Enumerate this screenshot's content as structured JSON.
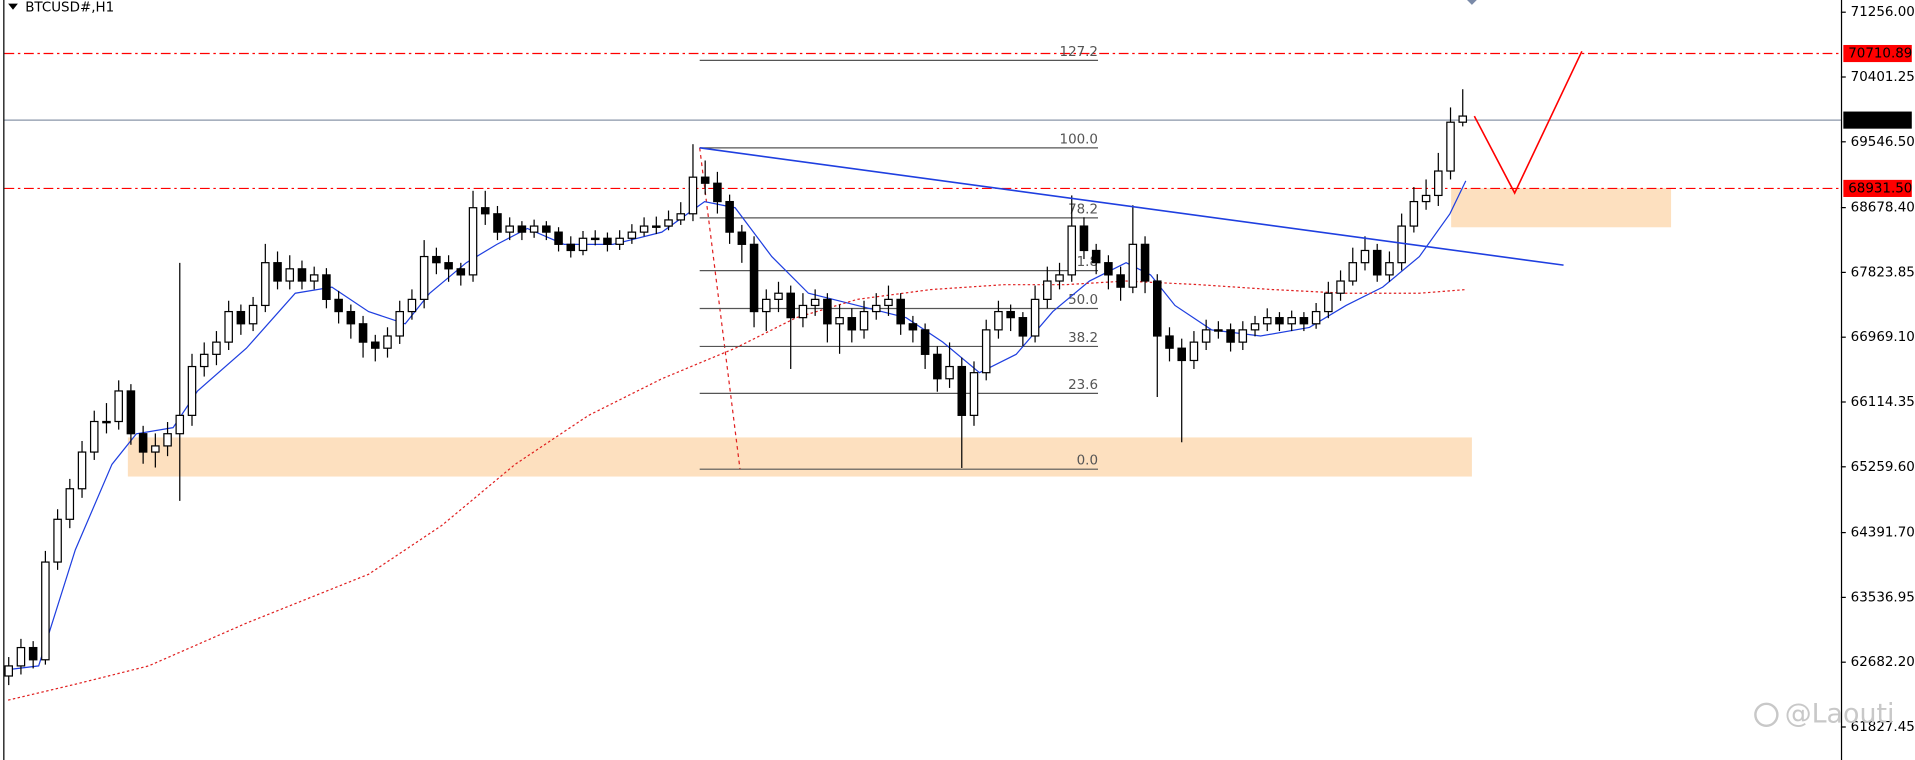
{
  "chart_data": {
    "type": "candlestick",
    "title": "BTCUSD#,H1",
    "watermark": "@Laouti",
    "ylim": [
      61392,
      71417
    ],
    "yticks": [
      {
        "value": 71256,
        "label": "71256.00"
      },
      {
        "value": 70401.25,
        "label": "70401.25"
      },
      {
        "value": 69546.5,
        "label": "69546.50"
      },
      {
        "value": 68678.4,
        "label": "68678.40"
      },
      {
        "value": 67823.85,
        "label": "67823.85"
      },
      {
        "value": 66969.1,
        "label": "66969.10"
      },
      {
        "value": 66114.35,
        "label": "66114.35"
      },
      {
        "value": 65259.6,
        "label": "65259.60"
      },
      {
        "value": 64391.7,
        "label": "64391.70"
      },
      {
        "value": 63536.95,
        "label": "63536.95"
      },
      {
        "value": 62682.2,
        "label": "62682.20"
      },
      {
        "value": 61827.45,
        "label": "61827.45"
      }
    ],
    "bull_color": "#ffffff",
    "bear_color": "#000000",
    "wick_color": "#000000",
    "open": [
      62500,
      62633,
      62875,
      62714,
      64003,
      64567,
      64970,
      65454,
      65857,
      65857,
      66260,
      65696,
      65454,
      65535,
      65696,
      65938,
      66582,
      66743,
      66904,
      67307,
      67146,
      67388,
      67952,
      67710,
      67871,
      67710,
      67791,
      67468,
      67307,
      67146,
      66904,
      66824,
      66985,
      67307,
      67468,
      68033,
      67952,
      67871,
      67791,
      68677,
      68597,
      68355,
      68435,
      68355,
      68435,
      68355,
      68194,
      68113,
      68274,
      68274,
      68194,
      68274,
      68355,
      68435,
      68435,
      68516,
      68597,
      69080,
      69000,
      68758,
      68355,
      68194,
      67307,
      67468,
      67549,
      67227,
      67388,
      67468,
      67146,
      67227,
      67066,
      67307,
      67388,
      67468,
      67146,
      67066,
      66743,
      66421,
      66582,
      65938,
      66501,
      67066,
      67307,
      67227,
      66985,
      67468,
      67710,
      67791,
      68435,
      68113,
      67952,
      67791,
      67629,
      68194,
      67710,
      66985,
      66824,
      66662,
      66904,
      67066,
      67066,
      66904,
      67066,
      67146,
      67227,
      67146,
      67227,
      67146,
      67307,
      67549,
      67710,
      67952,
      68113,
      67791,
      67952,
      68435,
      68758,
      68839,
      69161,
      69805
    ],
    "high": [
      62750,
      62990,
      62960,
      64150,
      64700,
      65100,
      65600,
      66000,
      66100,
      66400,
      66350,
      65800,
      65700,
      65850,
      67950,
      66750,
      66900,
      67050,
      67450,
      67400,
      67500,
      68200,
      68100,
      68050,
      67980,
      67900,
      67880,
      67580,
      67400,
      67250,
      67000,
      67100,
      67450,
      67600,
      68250,
      68150,
      68050,
      67950,
      68900,
      68900,
      68700,
      68550,
      68500,
      68520,
      68500,
      68420,
      68300,
      68370,
      68380,
      68350,
      68380,
      68460,
      68550,
      68560,
      68640,
      68750,
      69515,
      69300,
      69150,
      68850,
      68450,
      68300,
      67600,
      67700,
      67650,
      67550,
      67600,
      67550,
      67400,
      67350,
      67450,
      67550,
      67650,
      67550,
      67250,
      67150,
      66850,
      66900,
      66700,
      66650,
      67200,
      67450,
      67400,
      67300,
      67650,
      67900,
      67950,
      68839,
      68550,
      68200,
      68050,
      67900,
      68710,
      68300,
      67800,
      67100,
      66950,
      67050,
      67200,
      67180,
      67150,
      67180,
      67250,
      67350,
      67300,
      67320,
      67300,
      67420,
      67700,
      67850,
      68150,
      68300,
      68200,
      68100,
      68600,
      68950,
      69050,
      69400,
      70000,
      70240
    ],
    "low": [
      62380,
      62520,
      62600,
      62650,
      63900,
      64450,
      64850,
      65350,
      65700,
      65750,
      65550,
      65300,
      65250,
      65400,
      64810,
      65800,
      66450,
      66600,
      66800,
      67000,
      67050,
      67300,
      67600,
      67600,
      67600,
      67600,
      67350,
      67150,
      66950,
      66700,
      66650,
      66700,
      66880,
      67200,
      67350,
      67800,
      67700,
      67650,
      67700,
      68450,
      68250,
      68250,
      68250,
      68280,
      68250,
      68100,
      68020,
      68050,
      68180,
      68100,
      68120,
      68200,
      68300,
      68330,
      68380,
      68450,
      68500,
      68850,
      68600,
      68200,
      67950,
      67100,
      67050,
      67300,
      66550,
      67100,
      67250,
      66900,
      66750,
      66900,
      66950,
      67200,
      67250,
      67000,
      66900,
      66550,
      66250,
      66300,
      65244,
      65800,
      66400,
      66950,
      67050,
      66850,
      66900,
      67350,
      67600,
      67700,
      68000,
      67800,
      67600,
      67450,
      67550,
      67550,
      66180,
      66650,
      65583,
      66550,
      66800,
      66950,
      66780,
      66800,
      66980,
      67050,
      67050,
      67050,
      67050,
      67080,
      67220,
      67450,
      67650,
      67850,
      67700,
      67700,
      67850,
      68350,
      68650,
      68700,
      69050,
      69750
    ],
    "close": [
      62633,
      62875,
      62714,
      64003,
      64567,
      64970,
      65454,
      65857,
      65857,
      66260,
      65696,
      65454,
      65535,
      65696,
      65938,
      66582,
      66743,
      66904,
      67307,
      67146,
      67388,
      67952,
      67710,
      67871,
      67710,
      67791,
      67468,
      67307,
      67146,
      66904,
      66824,
      66985,
      67307,
      67468,
      68033,
      67952,
      67871,
      67791,
      68677,
      68597,
      68355,
      68435,
      68355,
      68435,
      68355,
      68194,
      68113,
      68274,
      68274,
      68194,
      68274,
      68355,
      68435,
      68435,
      68516,
      68597,
      69080,
      69000,
      68758,
      68355,
      68194,
      67307,
      67468,
      67549,
      67227,
      67388,
      67468,
      67146,
      67227,
      67066,
      67307,
      67388,
      67468,
      67146,
      67066,
      66743,
      66421,
      66582,
      65938,
      66501,
      67066,
      67307,
      67227,
      66985,
      67468,
      67710,
      67791,
      68435,
      68113,
      67952,
      67791,
      67629,
      68194,
      67710,
      66985,
      66824,
      66662,
      66904,
      67066,
      67066,
      66904,
      67066,
      67146,
      67227,
      67146,
      67227,
      67146,
      67307,
      67549,
      67710,
      67952,
      68113,
      67791,
      67952,
      68435,
      68758,
      68839,
      69161,
      69805,
      69886
    ],
    "moving_averages": [
      {
        "color": "#1f3fe0",
        "style": "solid",
        "x": [
          0,
          2.5,
          5.5,
          8.5,
          10.5,
          13.5,
          15.5,
          19.5,
          23.5,
          26.5,
          29.5,
          32.5,
          34.5,
          37.5,
          40,
          42.5,
          45.5,
          49.5,
          53.5,
          57,
          59.5,
          62.5,
          65.5,
          69.5,
          73.5,
          76.5,
          79.5,
          82.5,
          85.5,
          88.5,
          91.5,
          93.5,
          95.5,
          98.5,
          102.5,
          106.5,
          109.5,
          112.5,
          115.5,
          118,
          119.3
        ],
        "values": [
          62585,
          62633,
          64164,
          65292,
          65695,
          65776,
          66260,
          66824,
          67549,
          67629,
          67307,
          67146,
          67549,
          67952,
          68194,
          68403,
          68194,
          68194,
          68355,
          68758,
          68677,
          68033,
          67549,
          67388,
          67227,
          66904,
          66501,
          66743,
          67307,
          67710,
          67952,
          67791,
          67388,
          67066,
          66985,
          67098,
          67388,
          67629,
          68033,
          68597,
          69032
        ]
      },
      {
        "color": "#e02020",
        "style": "dotted",
        "x": [
          0,
          5.5,
          11.5,
          19.5,
          29.5,
          35.5,
          41.5,
          47.5,
          53.5,
          59.5,
          64.5,
          69.5,
          75.5,
          81.5,
          86.5,
          91.5,
          97.5,
          103.5,
          109.5,
          115.5,
          119.3
        ],
        "values": [
          62182,
          62392,
          62633,
          63197,
          63842,
          64487,
          65293,
          65937,
          66421,
          66824,
          67227,
          67468,
          67597,
          67662,
          67662,
          67710,
          67662,
          67597,
          67549,
          67549,
          67597
        ]
      }
    ],
    "price_lines": [
      {
        "value": 70710.89,
        "label": "70710.89",
        "color": "#ff0000",
        "style": "dashdot"
      },
      {
        "value": 69832.75,
        "label": "69832.75",
        "color": "#000000",
        "style": "solid"
      },
      {
        "value": 68931.5,
        "label": "68931.50",
        "color": "#ff0000",
        "style": "dashdot"
      }
    ],
    "fibonacci": {
      "x": [
        56.6,
        89.2
      ],
      "trend_x": [
        56.6,
        59.9
      ],
      "high": 69467,
      "low": 65228,
      "color": "#555555",
      "levels": [
        127.2,
        {
          "value": 100,
          "label": "100.0"
        },
        78.2,
        61.8,
        {
          "value": 50,
          "label": "50.0"
        },
        38.2,
        23.6,
        {
          "value": 0,
          "label": "0.0"
        }
      ]
    },
    "trendlines": [
      {
        "x": [
          56.6,
          127.3
        ],
        "values": [
          69467,
          67920
        ],
        "color": "#1f3fe0"
      },
      {
        "x": [
          120,
          123.3,
          128.8
        ],
        "values": [
          69886,
          68871,
          70740
        ],
        "color": "#ff0000"
      }
    ],
    "zones": [
      {
        "x": [
          9.8,
          119.8
        ],
        "values": [
          65131,
          65647
        ],
        "color": "#fde0bf"
      },
      {
        "x": [
          118.1,
          136.1
        ],
        "values": [
          68419,
          68935
        ],
        "color": "#fde0bf"
      }
    ]
  }
}
